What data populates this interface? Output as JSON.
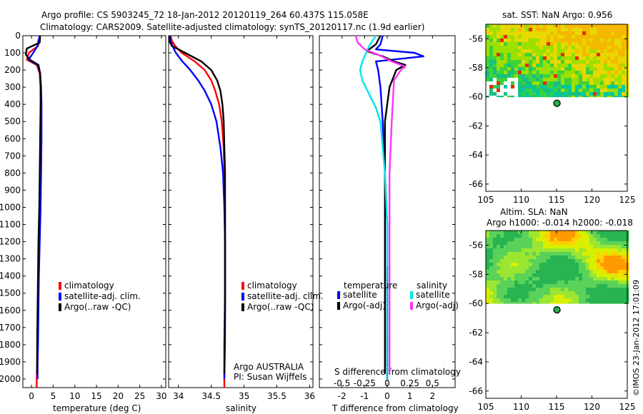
{
  "title": {
    "line1": "Argo profile: CS 5903245_72 18-Jan-2012 20120119_264 60.437S 115.058E",
    "line2": "Climatology: CARS2009. Satellite-adjusted climatology: synTS_20120117.nc (1.9d earlier)"
  },
  "colors": {
    "climatology": "#ff0000",
    "satellite": "#0000ff",
    "argo": "#000000",
    "sal_satellite": "#00e5e5",
    "sal_argo": "#ff33ff"
  },
  "depth_axis": {
    "ticks": [
      0,
      100,
      200,
      300,
      400,
      500,
      600,
      700,
      800,
      900,
      1000,
      1100,
      1200,
      1300,
      1400,
      1500,
      1600,
      1700,
      1800,
      1900,
      2000
    ],
    "range": [
      0,
      2050
    ]
  },
  "chart_data": [
    {
      "type": "line",
      "name": "temperature",
      "xlabel": "temperature (deg C)",
      "xlim": [
        -2,
        31
      ],
      "xticks": [
        0,
        5,
        10,
        15,
        20,
        25,
        30
      ],
      "ylim": [
        0,
        2050
      ],
      "series": [
        {
          "name": "climatology",
          "x": [
            1.9,
            1.8,
            1.5,
            -0.6,
            -1.1,
            1.2,
            1.9,
            2.1,
            2.2,
            2.2,
            2.1,
            2.0,
            1.8,
            1.6,
            1.5,
            1.4,
            1.3,
            1.2,
            1.2
          ],
          "y": [
            0,
            30,
            60,
            100,
            140,
            170,
            220,
            300,
            400,
            600,
            800,
            1000,
            1200,
            1400,
            1600,
            1800,
            1900,
            2000,
            2050
          ]
        },
        {
          "name": "satellite-adj. clim.",
          "x": [
            1.9,
            1.6,
            1.4,
            0.4,
            -0.7,
            1.4,
            2.0,
            2.2,
            2.3,
            2.3,
            2.2,
            2.1,
            1.9,
            1.7,
            1.6,
            1.5,
            1.4,
            1.4
          ],
          "y": [
            0,
            30,
            60,
            100,
            140,
            170,
            220,
            300,
            400,
            600,
            800,
            1000,
            1200,
            1400,
            1600,
            1800,
            1900,
            2000
          ]
        },
        {
          "name": "Argo(..raw -QC)",
          "x": [
            2.0,
            1.9,
            -1.1,
            -1.3,
            -0.4,
            1.6,
            2.0,
            2.1,
            2.1,
            2.0,
            1.9,
            1.8,
            1.6,
            1.5,
            1.4,
            1.3,
            1.3
          ],
          "y": [
            0,
            40,
            75,
            110,
            140,
            170,
            220,
            300,
            400,
            600,
            800,
            1000,
            1200,
            1400,
            1600,
            1800,
            1970
          ]
        }
      ],
      "legend": [
        "climatology",
        "satellite-adj. clim.",
        "Argo(..raw -QC)"
      ]
    },
    {
      "type": "line",
      "name": "salinity",
      "xlabel": "salinity",
      "xlim": [
        33.85,
        36.05
      ],
      "xticks": [
        34,
        34.5,
        35,
        35.5,
        36
      ],
      "ylim": [
        0,
        2050
      ],
      "series": [
        {
          "name": "climatology",
          "x": [
            33.88,
            33.9,
            33.95,
            34.05,
            34.25,
            34.4,
            34.5,
            34.56,
            34.62,
            34.66,
            34.69,
            34.7,
            34.71,
            34.71,
            34.71,
            34.71,
            34.7,
            34.7
          ],
          "y": [
            0,
            30,
            60,
            100,
            150,
            200,
            260,
            320,
            400,
            500,
            650,
            800,
            1000,
            1200,
            1500,
            1800,
            2000,
            2050
          ]
        },
        {
          "name": "satellite-adj. clim.",
          "x": [
            33.87,
            33.88,
            33.91,
            33.96,
            34.06,
            34.18,
            34.3,
            34.4,
            34.5,
            34.58,
            34.64,
            34.68,
            34.7,
            34.71,
            34.71,
            34.7,
            34.7
          ],
          "y": [
            0,
            30,
            60,
            100,
            150,
            200,
            260,
            320,
            400,
            500,
            650,
            800,
            1000,
            1200,
            1500,
            1800,
            2000
          ]
        },
        {
          "name": "Argo(..raw -QC)",
          "x": [
            33.87,
            33.86,
            33.9,
            34.1,
            34.35,
            34.5,
            34.59,
            34.64,
            34.67,
            34.69,
            34.7,
            34.71,
            34.71,
            34.71,
            34.7
          ],
          "y": [
            0,
            30,
            60,
            100,
            150,
            200,
            260,
            320,
            400,
            500,
            650,
            800,
            1200,
            1600,
            1970
          ]
        }
      ],
      "legend": [
        "climatology",
        "satellite-adj. clim.",
        "Argo(..raw -QC)"
      ],
      "annotation": [
        "Argo AUSTRALIA",
        "PI: Susan Wijffels"
      ]
    },
    {
      "type": "line",
      "name": "difference",
      "xlabel": "T difference from climatology",
      "xlabel_top": "S difference from climatology",
      "xlim": [
        -3.0,
        3.0
      ],
      "xticks": [
        -2,
        -1,
        0,
        1,
        2
      ],
      "xticks_top": [
        "-0.5",
        "-0.25",
        "0",
        "0.25",
        "0.5"
      ],
      "ylim": [
        0,
        2050
      ],
      "series": [
        {
          "name": "temperature satellite",
          "x": [
            -0.2,
            -0.3,
            -0.5,
            1.2,
            1.6,
            -0.5,
            -0.4,
            -0.3,
            -0.2,
            -0.1,
            0.0,
            0.0,
            0.0,
            0.0,
            0.0
          ],
          "y": [
            0,
            50,
            80,
            100,
            120,
            150,
            200,
            300,
            500,
            800,
            1100,
            1400,
            1700,
            1900,
            2000
          ]
        },
        {
          "name": "temperature Argo(-adj)",
          "x": [
            -0.3,
            -0.5,
            -0.9,
            -0.2,
            0.3,
            0.8,
            0.4,
            0.1,
            -0.1,
            -0.1,
            -0.1,
            -0.1,
            -0.1,
            -0.1
          ],
          "y": [
            0,
            50,
            90,
            120,
            150,
            170,
            200,
            300,
            500,
            800,
            1100,
            1400,
            1700,
            1970
          ]
        },
        {
          "name": "salinity satellite",
          "x": [
            -0.5,
            -0.8,
            -1.1,
            -1.2,
            -1.1,
            -0.8,
            -0.5,
            -0.3,
            -0.1,
            0.0,
            0.0,
            0.0,
            0.0
          ],
          "y": [
            0,
            60,
            150,
            200,
            260,
            340,
            420,
            500,
            800,
            1100,
            1400,
            1700,
            2000
          ]
        },
        {
          "name": "salinity Argo(-adj)",
          "x": [
            -1.4,
            -1.3,
            -1.0,
            -0.4,
            0.2,
            0.8,
            0.6,
            0.3,
            0.2,
            0.1,
            0.1,
            0.1,
            0.1
          ],
          "y": [
            0,
            40,
            80,
            110,
            150,
            180,
            200,
            260,
            500,
            800,
            1100,
            1500,
            1970
          ]
        }
      ],
      "legend_headers": [
        "temperature",
        "salinity"
      ],
      "legend": [
        "satellite",
        "Argo(-adj)",
        "satellite",
        "Argo(-adj)"
      ]
    },
    {
      "type": "heatmap",
      "name": "sst_map",
      "title": "sat. SST: NaN Argo: 0.956",
      "xlim": [
        105,
        125
      ],
      "ylim": [
        -66.5,
        -55
      ],
      "xticks": [
        105,
        110,
        115,
        120,
        125
      ],
      "yticks": [
        -56,
        -58,
        -60,
        -62,
        -64,
        -66
      ],
      "data_extent_lat": [
        -55,
        -60
      ],
      "marker": {
        "lon": 115.058,
        "lat": -60.437
      }
    },
    {
      "type": "heatmap",
      "name": "sla_map",
      "title_lines": [
        "Altim. SLA: NaN",
        "Argo h1000: -0.014 h2000: -0.018"
      ],
      "xlim": [
        105,
        125
      ],
      "ylim": [
        -66.5,
        -55
      ],
      "xticks": [
        105,
        110,
        115,
        120,
        125
      ],
      "yticks": [
        -56,
        -58,
        -60,
        -62,
        -64,
        -66
      ],
      "data_extent_lat": [
        -55,
        -60
      ],
      "marker": {
        "lon": 115.058,
        "lat": -60.437
      }
    }
  ],
  "credit": "©IMOS 23-Jan-2012 17:01:09"
}
